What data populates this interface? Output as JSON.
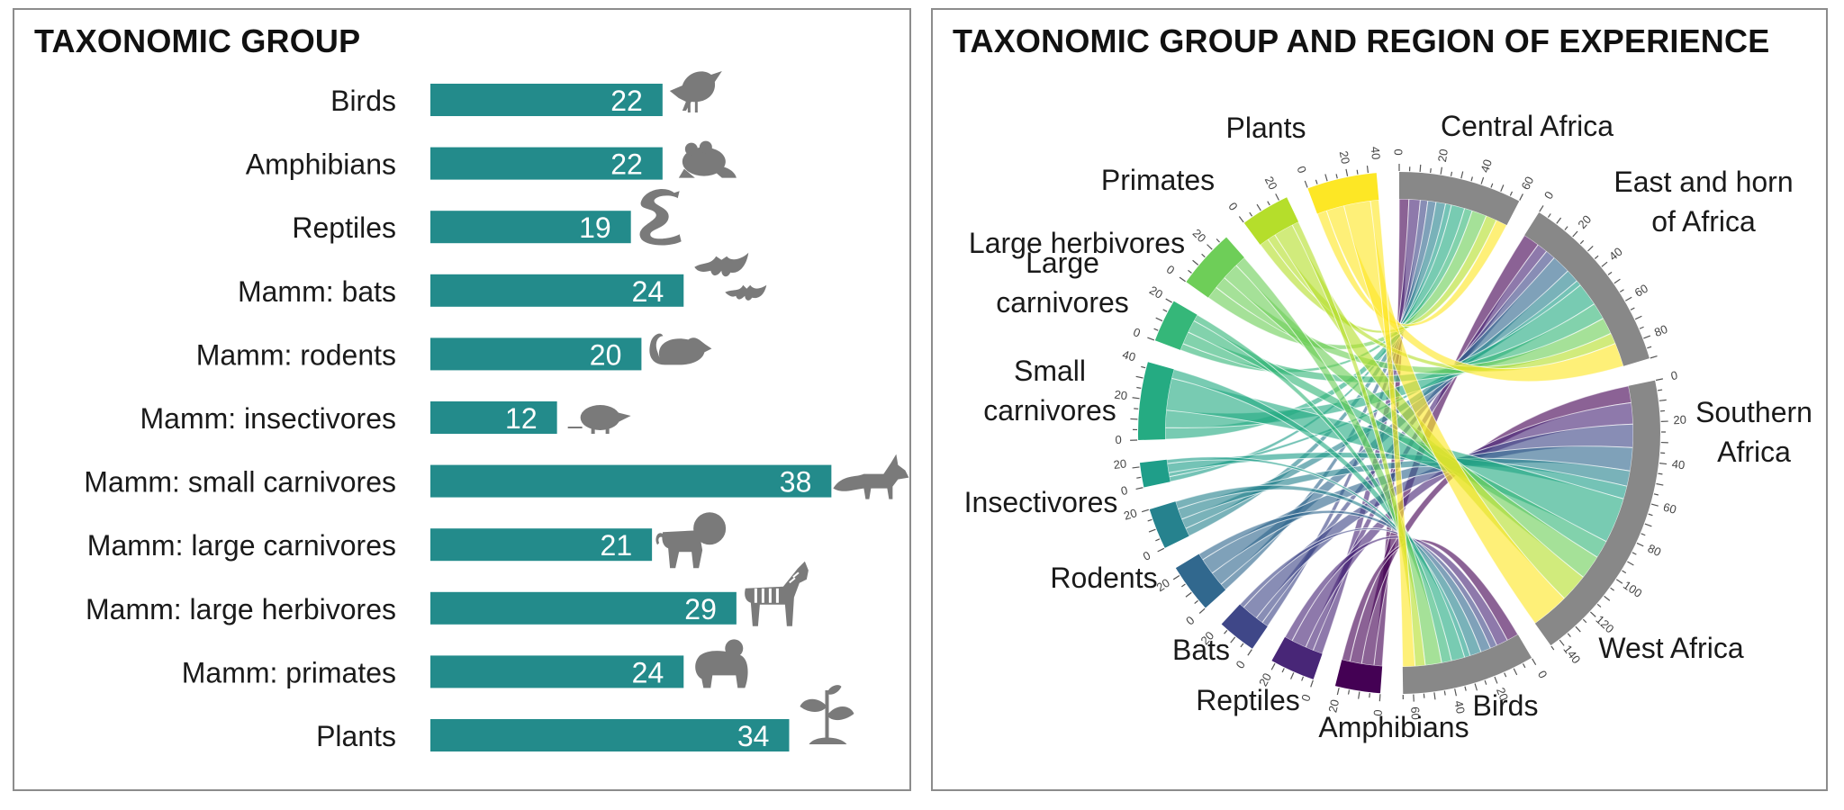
{
  "left_panel": {
    "title": "TAXONOMIC GROUP"
  },
  "right_panel": {
    "title": "TAXONOMIC GROUP AND REGION OF EXPERIENCE"
  },
  "colors": {
    "bar": "#238b8b",
    "icon": "#7a7a7a",
    "region_segment": "#888888",
    "border": "#8c8c8c"
  },
  "chart_data": [
    {
      "type": "bar",
      "orientation": "horizontal",
      "title": "TAXONOMIC GROUP",
      "categories": [
        "Birds",
        "Amphibians",
        "Reptiles",
        "Mamm: bats",
        "Mamm: rodents",
        "Mamm: insectivores",
        "Mamm: small carnivores",
        "Mamm: large carnivores",
        "Mamm: large herbivores",
        "Mamm: primates",
        "Plants"
      ],
      "values": [
        22,
        22,
        19,
        24,
        20,
        12,
        38,
        21,
        29,
        24,
        34
      ],
      "icons": [
        "bird-icon",
        "frog-icon",
        "snake-icon",
        "bat-icon",
        "rat-icon",
        "shrew-icon",
        "fox-icon",
        "lion-icon",
        "zebra-icon",
        "gorilla-icon",
        "plant-icon"
      ],
      "data_labels": true,
      "grid": false
    },
    {
      "type": "chord",
      "title": "TAXONOMIC GROUP AND REGION OF EXPERIENCE",
      "regions": [
        {
          "label": "Central Africa",
          "total": 60,
          "ticks": [
            "0",
            "20",
            "40",
            "60"
          ]
        },
        {
          "label": "East and horn of Africa",
          "total": 90,
          "ticks": [
            "0",
            "20",
            "40",
            "60",
            "80"
          ]
        },
        {
          "label": "Southern Africa",
          "total": 145,
          "ticks": [
            "0",
            "20",
            "40",
            "60",
            "80",
            "100",
            "120",
            "140"
          ]
        },
        {
          "label": "West Africa",
          "total": 65,
          "ticks": [
            "0",
            "20",
            "40",
            "60"
          ]
        }
      ],
      "groups": [
        {
          "label": "Birds",
          "total": 22,
          "color": "#440154",
          "ticks": [
            "0",
            "20"
          ]
        },
        {
          "label": "Amphibians",
          "total": 22,
          "color": "#482677",
          "ticks": [
            "0",
            "20"
          ]
        },
        {
          "label": "Reptiles",
          "total": 19,
          "color": "#3f4788",
          "ticks": [
            "0",
            "20"
          ]
        },
        {
          "label": "Bats",
          "total": 24,
          "color": "#31688e",
          "ticks": [
            "0",
            "20"
          ]
        },
        {
          "label": "Rodents",
          "total": 20,
          "color": "#26828e",
          "ticks": [
            "0",
            "20"
          ]
        },
        {
          "label": "Insectivores",
          "total": 12,
          "color": "#1f9e89",
          "ticks": [
            "0",
            "20"
          ]
        },
        {
          "label": "Small carnivores",
          "total": 38,
          "color": "#25ab82",
          "ticks": [
            "0",
            "20",
            "40"
          ]
        },
        {
          "label": "Large carnivores",
          "total": 21,
          "color": "#35b779",
          "ticks": [
            "0",
            "20"
          ]
        },
        {
          "label": "Large herbivores",
          "total": 29,
          "color": "#6ece58",
          "ticks": [
            "0",
            "20"
          ]
        },
        {
          "label": "Primates",
          "total": 24,
          "color": "#b5de2b",
          "ticks": [
            "0",
            "20"
          ]
        },
        {
          "label": "Plants",
          "total": 34,
          "color": "#fde725",
          "ticks": [
            "0",
            "20",
            "40"
          ]
        }
      ],
      "group_labels_display": [
        "Birds",
        "Amphibians",
        "Reptiles",
        "Bats",
        "Rodents",
        "Insectivores",
        "Small\ncarnivores",
        "Large\ncarnivores",
        "Large herbivores",
        "Primates",
        "Plants"
      ],
      "region_labels_display": [
        "Central Africa",
        "East and horn\nof Africa",
        "Southern\nAfrica",
        "West Africa"
      ]
    }
  ]
}
